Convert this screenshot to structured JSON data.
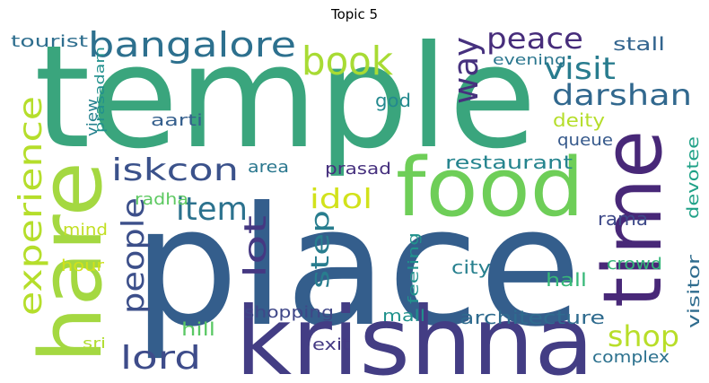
{
  "title": "Topic 5",
  "words": [
    {
      "text": "temple",
      "color": "#3aa57d"
    },
    {
      "text": "place",
      "color": "#345e8c"
    },
    {
      "text": "krishna",
      "color": "#433d84"
    },
    {
      "text": "hare",
      "color": "#a4d841"
    },
    {
      "text": "food",
      "color": "#6ece58"
    },
    {
      "text": "time",
      "color": "#482878"
    },
    {
      "text": "bangalore",
      "color": "#2d708e"
    },
    {
      "text": "book",
      "color": "#a8db34"
    },
    {
      "text": "way",
      "color": "#46317e"
    },
    {
      "text": "peace",
      "color": "#472d7b"
    },
    {
      "text": "visit",
      "color": "#287c8e"
    },
    {
      "text": "darshan",
      "color": "#31688e"
    },
    {
      "text": "experience",
      "color": "#b5de2b"
    },
    {
      "text": "iskcon",
      "color": "#3b528b"
    },
    {
      "text": "people",
      "color": "#3c4f8a"
    },
    {
      "text": "item",
      "color": "#2c728e"
    },
    {
      "text": "lot",
      "color": "#453882"
    },
    {
      "text": "idol",
      "color": "#d2e21b"
    },
    {
      "text": "step",
      "color": "#287d8e"
    },
    {
      "text": "lord",
      "color": "#3e4c8a"
    },
    {
      "text": "shop",
      "color": "#b8de29"
    },
    {
      "text": "tourist",
      "color": "#2e6e8e"
    },
    {
      "text": "stall",
      "color": "#32648e"
    },
    {
      "text": "evening",
      "color": "#2a768e"
    },
    {
      "text": "prasadam",
      "color": "#21908d"
    },
    {
      "text": "view",
      "color": "#26818e"
    },
    {
      "text": "aarti",
      "color": "#355f8d"
    },
    {
      "text": "god",
      "color": "#23898e"
    },
    {
      "text": "deity",
      "color": "#b5de2b"
    },
    {
      "text": "queue",
      "color": "#375a8c"
    },
    {
      "text": "devotee",
      "color": "#1fa187"
    },
    {
      "text": "area",
      "color": "#2a778e"
    },
    {
      "text": "prasad",
      "color": "#46307e"
    },
    {
      "text": "restaurant",
      "color": "#25848e"
    },
    {
      "text": "radha",
      "color": "#5ec962"
    },
    {
      "text": "rama",
      "color": "#3e4989"
    },
    {
      "text": "mind",
      "color": "#c2df23"
    },
    {
      "text": "hour",
      "color": "#d0e11c"
    },
    {
      "text": "city",
      "color": "#27808e"
    },
    {
      "text": "feeling",
      "color": "#21918c"
    },
    {
      "text": "crowd",
      "color": "#34b679"
    },
    {
      "text": "hall",
      "color": "#37b878"
    },
    {
      "text": "visitor",
      "color": "#2f6c8e"
    },
    {
      "text": "hill",
      "color": "#5ac864"
    },
    {
      "text": "shopping",
      "color": "#3f4788"
    },
    {
      "text": "mall",
      "color": "#20928c"
    },
    {
      "text": "architecture",
      "color": "#2f6b8e"
    },
    {
      "text": "sri",
      "color": "#b0dd2f"
    },
    {
      "text": "exit",
      "color": "#443983"
    },
    {
      "text": "complex",
      "color": "#2c718e"
    }
  ]
}
